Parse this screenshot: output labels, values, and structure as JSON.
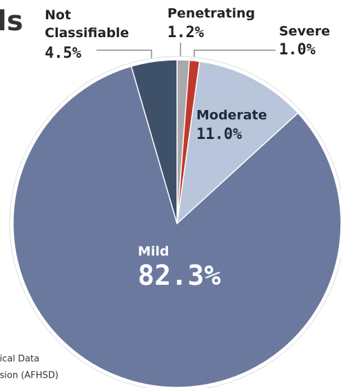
{
  "chart_data": {
    "type": "pie",
    "title": "ls",
    "categories": [
      "Penetrating",
      "Severe",
      "Moderate",
      "Mild",
      "Not Classifiable"
    ],
    "values": [
      1.2,
      1.0,
      11.0,
      82.3,
      4.5
    ],
    "value_labels": [
      "1.2%",
      "1.0%",
      "11.0%",
      "82.3%",
      "4.5%"
    ],
    "colors": [
      "#a7a9ac",
      "#c0392b",
      "#b9c5da",
      "#6b799f",
      "#3f5069"
    ],
    "source": [
      "lical Data",
      "ision (AFHSD)"
    ]
  }
}
